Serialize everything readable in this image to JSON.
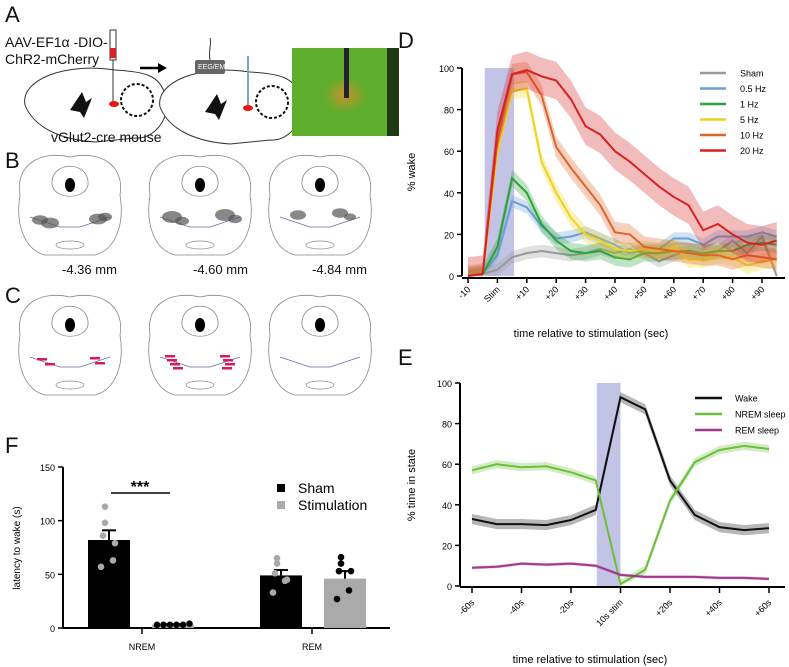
{
  "panels": {
    "a": "A",
    "b": "B",
    "c": "C",
    "d": "D",
    "e": "E",
    "f": "F"
  },
  "panel_a": {
    "virus_line1": "AAV-EF1α -DIO-",
    "virus_line2": "ChR2-mCherry",
    "mouse": "vGlut2-cre mouse",
    "device": "EEG/EMG"
  },
  "panel_b": {
    "sections": [
      "-4.36 mm",
      "-4.60 mm",
      "-4.84 mm"
    ]
  },
  "colors": {
    "stim": "#b8b8e0",
    "sham": "#999999",
    "hz05": "#6a9fd8",
    "hz1": "#2ea23a",
    "hz5": "#f2d21c",
    "hz10": "#e0642a",
    "hz20": "#d62222",
    "wake": "#111111",
    "nrem": "#6cbf3a",
    "rem": "#a0388e",
    "bar_sham": "#000000",
    "bar_stim": "#aaaaaa"
  },
  "chart_data": [
    {
      "type": "line",
      "panel": "D",
      "xlabel": "time relative to stimulation (sec)",
      "ylabel": "% wake",
      "ylim": [
        0,
        100
      ],
      "yticks": [
        "0",
        "20",
        "40",
        "60",
        "80",
        "100"
      ],
      "xtick_labels": [
        "-10",
        "Stim",
        "+10",
        "+20",
        "+30",
        "+40",
        "+50",
        "+60",
        "+70",
        "+80",
        "+90"
      ],
      "xtick_values": [
        -10,
        0,
        10,
        20,
        30,
        40,
        50,
        60,
        70,
        80,
        90
      ],
      "stim_window": [
        -5,
        5
      ],
      "x": [
        -10,
        -5,
        0,
        5,
        10,
        15,
        20,
        25,
        30,
        35,
        40,
        45,
        50,
        55,
        60,
        65,
        70,
        75,
        80,
        85,
        90,
        95
      ],
      "series": [
        {
          "name": "Sham",
          "color": "#999999",
          "sem": 3,
          "values": [
            0,
            1,
            3,
            9,
            11,
            12,
            11,
            10,
            11,
            13,
            11,
            13,
            11,
            7,
            10,
            12,
            10,
            12,
            17,
            11,
            19,
            0
          ]
        },
        {
          "name": "0.5 Hz",
          "color": "#6a9fd8",
          "sem": 3,
          "values": [
            0,
            1,
            10,
            36,
            33,
            24,
            18,
            19,
            21,
            18,
            15,
            11,
            13,
            13,
            18,
            18,
            15,
            19,
            19,
            19,
            21,
            19
          ]
        },
        {
          "name": "1 Hz",
          "color": "#2ea23a",
          "sem": 4,
          "values": [
            0,
            1,
            14,
            47,
            40,
            25,
            17,
            12,
            11,
            12,
            9,
            8,
            11,
            11,
            12,
            12,
            11,
            12,
            12,
            15,
            16,
            15
          ]
        },
        {
          "name": "5 Hz",
          "color": "#f2d21c",
          "sem": 4,
          "values": [
            0,
            1,
            60,
            89,
            90,
            55,
            40,
            28,
            20,
            17,
            13,
            12,
            13,
            12,
            14,
            8,
            8,
            10,
            9,
            5,
            7,
            8
          ]
        },
        {
          "name": "10 Hz",
          "color": "#e0642a",
          "sem": 5,
          "values": [
            0,
            1,
            65,
            97,
            98,
            87,
            62,
            52,
            43,
            34,
            21,
            20,
            14,
            13,
            12,
            11,
            10,
            10,
            8,
            10,
            9,
            8
          ]
        },
        {
          "name": "20 Hz",
          "color": "#d62222",
          "sem": 9,
          "values": [
            0,
            1,
            70,
            97,
            99,
            96,
            94,
            85,
            72,
            68,
            60,
            55,
            49,
            43,
            38,
            34,
            22,
            25,
            20,
            16,
            15,
            17
          ]
        }
      ],
      "legend": "top-right"
    },
    {
      "type": "line",
      "panel": "E",
      "xlabel": "time relative to stimulation (sec)",
      "ylabel": "% time in state",
      "ylim": [
        0,
        100
      ],
      "yticks": [
        "0",
        "20",
        "40",
        "60",
        "80",
        "100"
      ],
      "xtick_labels": [
        "-60s",
        "-40s",
        "-20s",
        "10s stim",
        "+20s",
        "+40s",
        "+60s"
      ],
      "xtick_index": [
        0,
        2,
        4,
        6,
        8,
        10,
        12
      ],
      "stim_index": [
        5,
        6
      ],
      "series": [
        {
          "name": "Wake",
          "color": "#111111",
          "sem": 2.5,
          "values": [
            33,
            30.5,
            30.5,
            30,
            32.5,
            37.5,
            93,
            87,
            52,
            35,
            29,
            27.5,
            28.5
          ]
        },
        {
          "name": "NREM sleep",
          "color": "#6cbf3a",
          "sem": 2,
          "values": [
            57,
            60,
            58.5,
            59,
            56,
            52,
            1,
            8,
            42,
            61,
            67,
            69,
            67.5
          ]
        },
        {
          "name": "REM sleep",
          "color": "#a0388e",
          "sem": 0.8,
          "values": [
            9,
            9.5,
            11,
            10.5,
            11,
            10,
            5.5,
            4.5,
            4.5,
            4.5,
            4,
            4,
            3.5
          ]
        }
      ],
      "legend": "top-right"
    },
    {
      "type": "bar",
      "panel": "F",
      "ylabel": "latency to wake (s)",
      "ylim": [
        0,
        150
      ],
      "yticks": [
        "0",
        "50",
        "100",
        "150"
      ],
      "categories": [
        "NREM",
        "REM"
      ],
      "significance": "***",
      "series": [
        {
          "name": "Sham",
          "color": "#000000",
          "values": [
            82,
            49
          ],
          "sem": [
            9,
            5
          ],
          "points": [
            [
              113,
              98,
              86,
              79,
              63,
              57
            ],
            [
              65,
              60,
              51,
              45,
              44,
              33
            ]
          ]
        },
        {
          "name": "Stimulation",
          "color": "#aaaaaa",
          "values": [
            3,
            46
          ],
          "sem": [
            0.5,
            7
          ],
          "points": [
            [
              3,
              3,
              3,
              3,
              3,
              4
            ],
            [
              66,
              60,
              53,
              53,
              35,
              27
            ]
          ]
        }
      ],
      "legend": "top-right"
    }
  ]
}
